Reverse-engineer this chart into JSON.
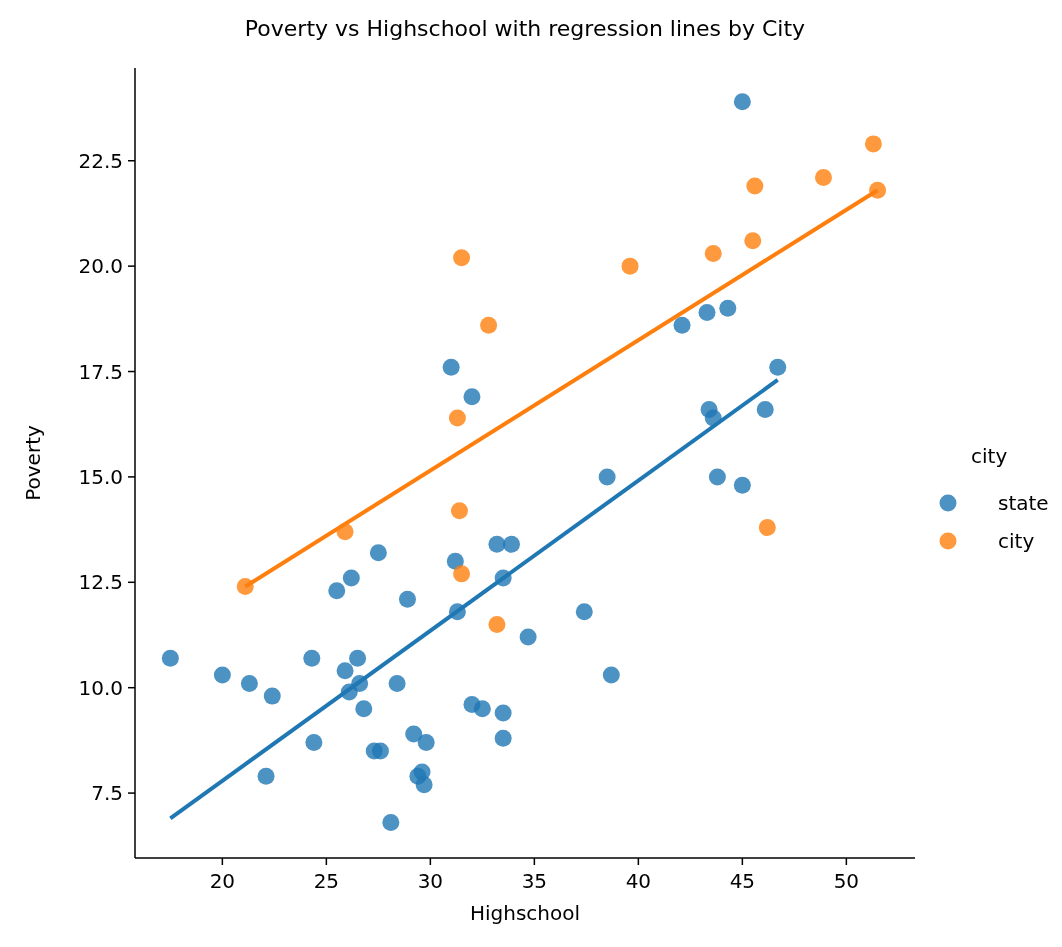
{
  "chart_data": {
    "type": "scatter",
    "title": "Poverty vs Highschool with regression lines by City",
    "xlabel": "Highschool",
    "ylabel": "Poverty",
    "legend_title": "city",
    "legend": "right",
    "marker": "circle",
    "grid": false,
    "xlim": [
      15.8,
      53.3
    ],
    "xticks": [
      20,
      25,
      30,
      35,
      40,
      45,
      50
    ],
    "ylim": [
      5.96,
      24.7
    ],
    "yticks": [
      {
        "value": 7.5,
        "label": "7.5"
      },
      {
        "value": 10,
        "label": "10.0"
      },
      {
        "value": 12.5,
        "label": "12.5"
      },
      {
        "value": 15,
        "label": "15.0"
      },
      {
        "value": 17.5,
        "label": "17.5"
      },
      {
        "value": 20,
        "label": "20.0"
      },
      {
        "value": 22.5,
        "label": "22.5"
      }
    ],
    "series": [
      {
        "name": "state",
        "color": "#1f77b4",
        "x": [
          31.0,
          32.0,
          27.5,
          26.2,
          25.5,
          28.9,
          31.2,
          33.2,
          33.9,
          33.5,
          31.3,
          34.7,
          17.5,
          20.0,
          21.3,
          22.4,
          22.1,
          24.3,
          24.4,
          26.5,
          25.9,
          26.6,
          26.1,
          26.8,
          28.4,
          27.3,
          27.6,
          29.2,
          29.8,
          29.6,
          29.4,
          29.7,
          28.1,
          32.0,
          32.5,
          33.5,
          33.5,
          45.0,
          42.1,
          43.3,
          44.3,
          46.7,
          43.4,
          43.6,
          46.1,
          38.5,
          43.8,
          45.0,
          37.4,
          38.7
        ],
        "values": [
          17.6,
          16.9,
          13.2,
          12.6,
          12.3,
          12.1,
          13.0,
          13.4,
          13.4,
          12.6,
          11.8,
          11.2,
          10.7,
          10.3,
          10.1,
          9.8,
          7.9,
          10.7,
          8.7,
          10.7,
          10.4,
          10.1,
          9.9,
          9.5,
          10.1,
          8.5,
          8.5,
          8.9,
          8.7,
          8.0,
          7.9,
          7.7,
          6.8,
          9.6,
          9.5,
          9.4,
          8.8,
          23.9,
          18.6,
          18.9,
          19.0,
          17.6,
          16.6,
          16.4,
          16.6,
          15.0,
          15.0,
          14.8,
          11.8,
          10.3
        ]
      },
      {
        "name": "city",
        "color": "#ff7f0e",
        "x": [
          31.5,
          32.8,
          39.6,
          43.6,
          45.5,
          45.6,
          48.9,
          51.3,
          51.5,
          31.3,
          31.4,
          31.5,
          33.2,
          46.2,
          25.9,
          21.1
        ],
        "values": [
          20.2,
          18.6,
          20.0,
          20.3,
          20.6,
          21.9,
          22.1,
          22.9,
          21.8,
          16.4,
          14.2,
          12.7,
          11.5,
          13.8,
          13.7,
          12.4
        ]
      },
      {
        "type": "line",
        "color": "#1f77b4",
        "marker": "none",
        "line_style": "solid",
        "x": [
          17.5,
          46.7
        ],
        "values": [
          6.9,
          17.3
        ]
      },
      {
        "type": "line",
        "color": "#ff7f0e",
        "marker": "none",
        "line_style": "solid",
        "x": [
          21.1,
          51.5
        ],
        "values": [
          12.4,
          21.8
        ]
      }
    ]
  }
}
